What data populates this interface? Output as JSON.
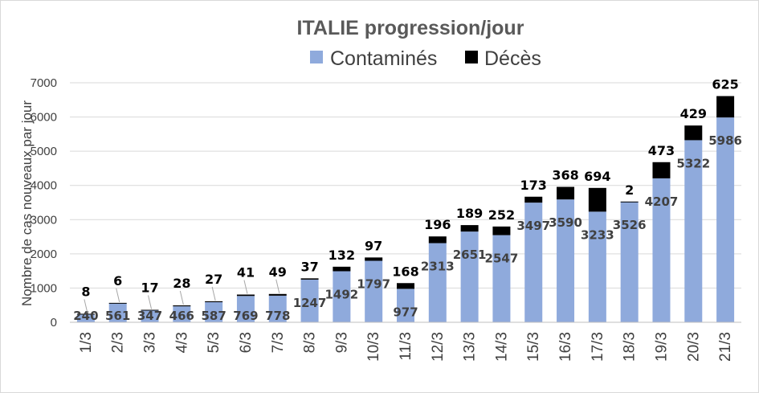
{
  "chart_data": {
    "type": "bar",
    "stacked": true,
    "title": "ITALIE progression/jour",
    "ylabel": "Nombre de cas nouveaux par jour",
    "xlabel": "",
    "ylim": [
      0,
      7000
    ],
    "yticks": [
      0,
      1000,
      2000,
      3000,
      4000,
      5000,
      6000,
      7000
    ],
    "ytick_labels": [
      "0",
      "1000",
      "2000",
      "3000",
      "4000",
      "5000",
      "6000",
      "7000"
    ],
    "grid": true,
    "legend_position": "top",
    "categories": [
      "1/3",
      "2/3",
      "3/3",
      "4/3",
      "5/3",
      "6/3",
      "7/3",
      "8/3",
      "9/3",
      "10/3",
      "11/3",
      "12/3",
      "13/3",
      "14/3",
      "15/3",
      "16/3",
      "17/3",
      "18/3",
      "19/3",
      "20/3",
      "21/3"
    ],
    "series": [
      {
        "name": "Contaminés",
        "color": "#8faadc",
        "values": [
          240,
          561,
          347,
          466,
          587,
          769,
          778,
          1247,
          1492,
          1797,
          977,
          2313,
          2651,
          2547,
          3497,
          3590,
          3233,
          3526,
          4207,
          5322,
          5986
        ]
      },
      {
        "name": "Décès",
        "color": "#000000",
        "values": [
          8,
          6,
          17,
          28,
          27,
          41,
          49,
          37,
          132,
          97,
          168,
          196,
          189,
          252,
          173,
          368,
          694,
          2,
          473,
          429,
          625
        ]
      }
    ]
  }
}
